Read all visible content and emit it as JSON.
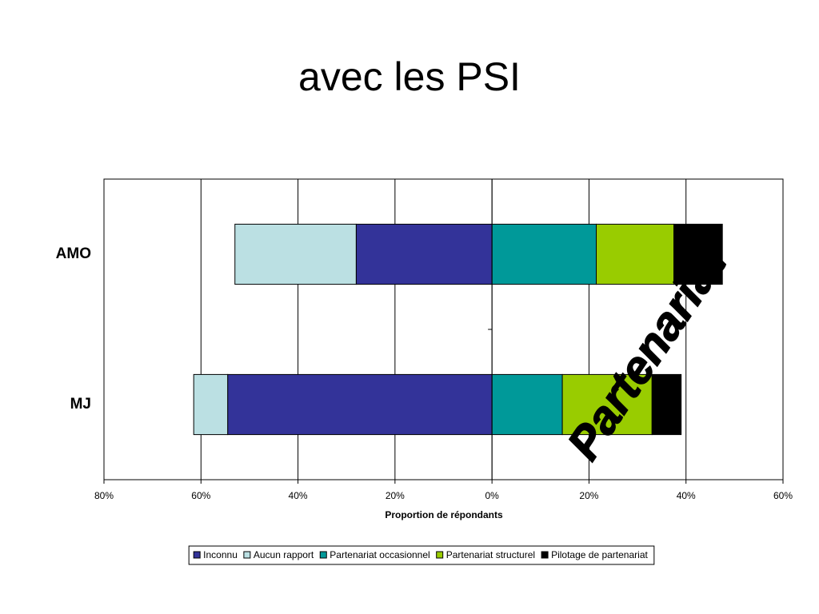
{
  "chart_data": {
    "type": "bar",
    "orientation": "horizontal",
    "stacked": true,
    "title": "avec les PSI",
    "x_label": "Proportion de répondants",
    "annotation": "Partenariat",
    "categories": [
      "AMO",
      "MJ"
    ],
    "series": [
      {
        "name": "Inconnu",
        "color": "#333399",
        "values": [
          -28,
          -54.5
        ]
      },
      {
        "name": "Aucun rapport",
        "color": "#bbe0e3",
        "values": [
          -25,
          -7
        ]
      },
      {
        "name": "Partenariat occasionnel",
        "color": "#009999",
        "values": [
          21.5,
          14.5
        ]
      },
      {
        "name": "Partenariat structurel",
        "color": "#99cc00",
        "values": [
          16,
          18.5
        ]
      },
      {
        "name": "Pilotage de partenariat",
        "color": "#000000",
        "values": [
          10,
          6
        ]
      }
    ],
    "xlim": [
      -80,
      60
    ],
    "xticks": [
      {
        "value": -80,
        "label": "80%"
      },
      {
        "value": -60,
        "label": "60%"
      },
      {
        "value": -40,
        "label": "40%"
      },
      {
        "value": -20,
        "label": "20%"
      },
      {
        "value": 0,
        "label": "0%"
      },
      {
        "value": 20,
        "label": "20%"
      },
      {
        "value": 40,
        "label": "40%"
      },
      {
        "value": 60,
        "label": "60%"
      }
    ],
    "grid": true,
    "legend": "bottom"
  }
}
